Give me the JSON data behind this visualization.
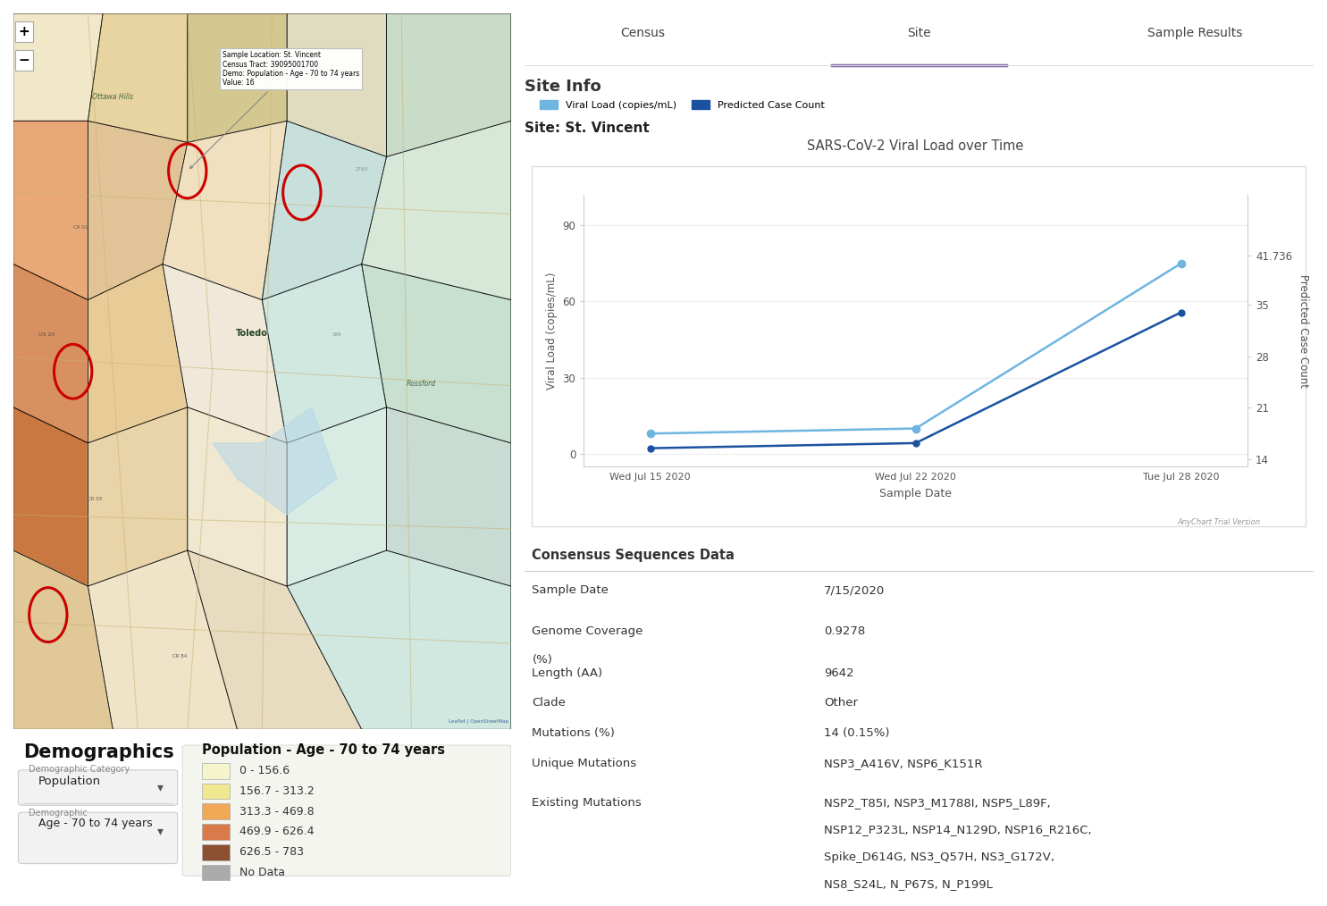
{
  "title": "SARS-CoV-2 Viral Load over Time",
  "chart_dates": [
    "Wed Jul 15 2020",
    "Wed Jul 22 2020",
    "Tue Jul 28 2020"
  ],
  "viral_load": [
    8,
    10,
    75
  ],
  "predicted_case_count": [
    15.5,
    16.2,
    34
  ],
  "viral_load_color": "#6eb5e0",
  "predicted_color": "#1a52a0",
  "left_ylabel": "Viral Load (copies/mL)",
  "right_ylabel": "Predicted Case Count",
  "xlabel": "Sample Date",
  "left_yticks": [
    0,
    30,
    60,
    90
  ],
  "right_yticks": [
    14,
    21,
    28,
    35,
    41.736
  ],
  "legend_viral": "Viral Load (copies/mL)",
  "legend_predicted": "Predicted Case Count",
  "tab_labels": [
    "Census",
    "Site",
    "Sample Results"
  ],
  "active_tab": "Site",
  "site_info_title": "Site Info",
  "site_name": "Site: St. Vincent",
  "consensus_title": "Consensus Sequences Data",
  "consensus_fields": [
    [
      "Sample Date",
      "7/15/2020"
    ],
    [
      "Genome Coverage\n(%)",
      "0.9278"
    ],
    [
      "Length (AA)",
      "9642"
    ],
    [
      "Clade",
      "Other"
    ],
    [
      "Mutations (%)",
      "14 (0.15%)"
    ],
    [
      "Unique Mutations",
      "NSP3_A416V, NSP6_K151R"
    ],
    [
      "Existing Mutations",
      "NSP2_T85I, NSP3_M1788I, NSP5_L89F,\nNSP12_P323L, NSP14_N129D, NSP16_R216C,\nSpike_D614G, NS3_Q57H, NS3_G172V,\nNS8_S24L, N_P67S, N_P199L"
    ]
  ],
  "demographics_title": "Demographics",
  "legend_title": "Population - Age - 70 to 74 years",
  "legend_colors": [
    "#f5f5cc",
    "#f0e890",
    "#f0a855",
    "#d97a4a",
    "#8b5030",
    "#aaaaaa"
  ],
  "legend_labels": [
    "0 - 156.6",
    "156.7 - 313.2",
    "313.3 - 469.8",
    "469.9 - 626.4",
    "626.5 - 783",
    "No Data"
  ],
  "tooltip_text": "Sample Location: St. Vincent\nCensus Tract: 39095001700\nDemo: Population - Age - 70 to 74 years\nValue: 16",
  "anychart_text": "AnyChart Trial Version",
  "tab_underline_color": "#7b5ea7",
  "bg_color": "#ffffff"
}
